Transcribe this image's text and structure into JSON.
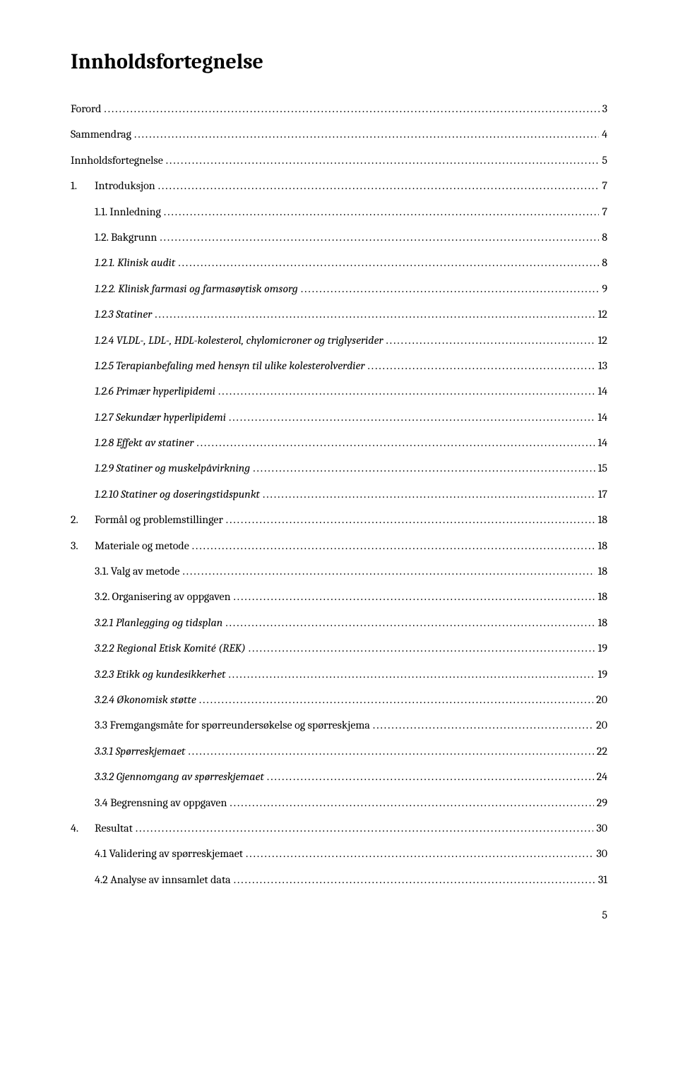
{
  "title": "Innholdsfortegnelse",
  "page_number": "5",
  "typography": {
    "title_fontsize_pt": 22,
    "body_fontsize_pt": 12,
    "font_family": "Cambria, Georgia, serif",
    "text_color": "#000000",
    "background_color": "#ffffff",
    "leader_char": "."
  },
  "entries": [
    {
      "label": "Forord",
      "page": "3",
      "indent": 0,
      "italic": false,
      "numbered": false
    },
    {
      "label": "Sammendrag",
      "page": "4",
      "indent": 0,
      "italic": false,
      "numbered": false
    },
    {
      "label": "Innholdsfortegnelse",
      "page": "5",
      "indent": 0,
      "italic": false,
      "numbered": false
    },
    {
      "num": "1.",
      "label": "Introduksjon",
      "page": "7",
      "indent": 0,
      "italic": false,
      "numbered": true
    },
    {
      "label": "1.1. Innledning",
      "page": "7",
      "indent": 1,
      "italic": false,
      "numbered": false
    },
    {
      "label": "1.2. Bakgrunn",
      "page": "8",
      "indent": 1,
      "italic": false,
      "numbered": false
    },
    {
      "label": "1.2.1. Klinisk audit",
      "page": "8",
      "indent": 2,
      "italic": true,
      "numbered": false
    },
    {
      "label": "1.2.2. Klinisk farmasi og farmasøytisk omsorg",
      "page": "9",
      "indent": 2,
      "italic": true,
      "numbered": false
    },
    {
      "label": "1.2.3 Statiner",
      "page": "12",
      "indent": 2,
      "italic": true,
      "numbered": false
    },
    {
      "label": "1.2.4 VLDL-, LDL-, HDL-kolesterol, chylomicroner og triglyserider",
      "page": "12",
      "indent": 2,
      "italic": true,
      "numbered": false
    },
    {
      "label": "1.2.5 Terapianbefaling med hensyn til ulike kolesterolverdier",
      "page": "13",
      "indent": 2,
      "italic": true,
      "numbered": false
    },
    {
      "label": "1.2.6 Primær hyperlipidemi",
      "page": "14",
      "indent": 2,
      "italic": true,
      "numbered": false
    },
    {
      "label": "1.2.7 Sekundær hyperlipidemi",
      "page": "14",
      "indent": 2,
      "italic": true,
      "numbered": false
    },
    {
      "label": "1.2.8 Effekt av statiner",
      "page": "14",
      "indent": 2,
      "italic": true,
      "numbered": false
    },
    {
      "label": "1.2.9 Statiner og muskelpåvirkning",
      "page": "15",
      "indent": 2,
      "italic": true,
      "numbered": false
    },
    {
      "label": "1.2.10 Statiner og doseringstidspunkt",
      "page": "17",
      "indent": 2,
      "italic": true,
      "numbered": false
    },
    {
      "num": "2.",
      "label": "Formål og problemstillinger",
      "page": "18",
      "indent": 0,
      "italic": false,
      "numbered": true
    },
    {
      "num": "3.",
      "label": "Materiale og metode",
      "page": "18",
      "indent": 0,
      "italic": false,
      "numbered": true
    },
    {
      "label": "3.1. Valg av metode",
      "page": "18",
      "indent": 1,
      "italic": false,
      "numbered": false
    },
    {
      "label": "3.2. Organisering av oppgaven",
      "page": "18",
      "indent": 1,
      "italic": false,
      "numbered": false
    },
    {
      "label": "3.2.1 Planlegging og tidsplan",
      "page": "18",
      "indent": 2,
      "italic": true,
      "numbered": false
    },
    {
      "label": "3.2.2 Regional Etisk Komité (REK)",
      "page": "19",
      "indent": 2,
      "italic": true,
      "numbered": false
    },
    {
      "label": "3.2.3 Etikk og kundesikkerhet",
      "page": "19",
      "indent": 2,
      "italic": true,
      "numbered": false
    },
    {
      "label": "3.2.4 Økonomisk støtte",
      "page": "20",
      "indent": 2,
      "italic": true,
      "numbered": false
    },
    {
      "label": "3.3 Fremgangsmåte for spørreundersøkelse og spørreskjema",
      "page": "20",
      "indent": 1,
      "italic": false,
      "numbered": false
    },
    {
      "label": "3.3.1 Spørreskjemaet",
      "page": "22",
      "indent": 2,
      "italic": true,
      "numbered": false
    },
    {
      "label": "3.3.2 Gjennomgang av spørreskjemaet",
      "page": "24",
      "indent": 2,
      "italic": true,
      "numbered": false
    },
    {
      "label": "3.4 Begrensning av oppgaven",
      "page": "29",
      "indent": 1,
      "italic": false,
      "numbered": false
    },
    {
      "num": "4.",
      "label": "Resultat",
      "page": "30",
      "indent": 0,
      "italic": false,
      "numbered": true
    },
    {
      "label": "4.1 Validering av spørreskjemaet",
      "page": "30",
      "indent": 1,
      "italic": false,
      "numbered": false
    },
    {
      "label": "4.2 Analyse av innsamlet data",
      "page": "31",
      "indent": 1,
      "italic": false,
      "numbered": false
    }
  ]
}
